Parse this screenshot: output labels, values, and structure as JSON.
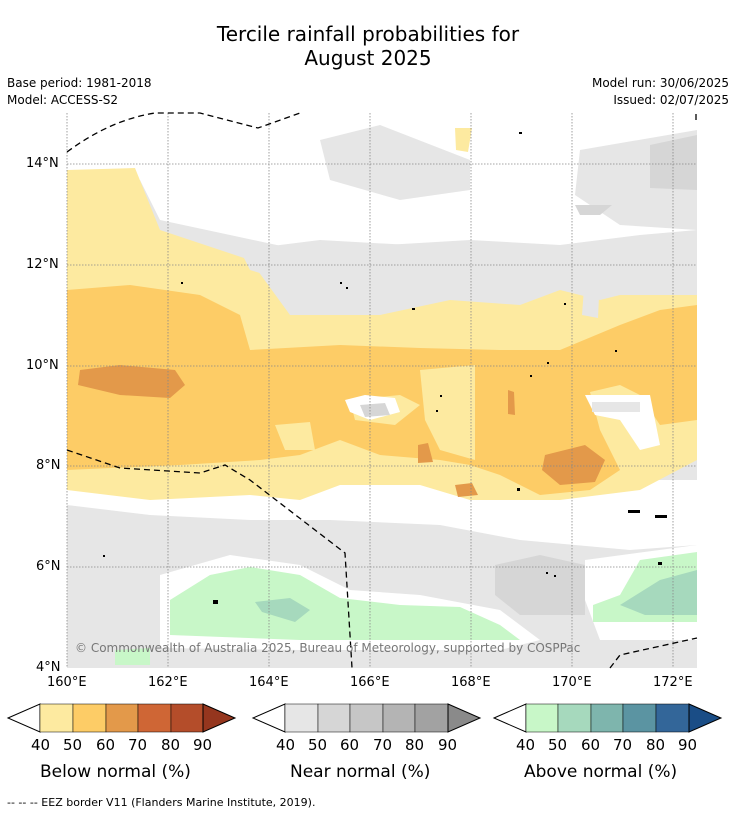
{
  "title_line1": "Tercile rainfall probabilities for",
  "title_line2": "August 2025",
  "base_period": "Base period: 1981-2018",
  "model": "Model: ACCESS-S2",
  "model_run": "Model run: 30/06/2025",
  "issued": "Issued: 02/07/2025",
  "lat_labels": [
    "14°N",
    "12°N",
    "10°N",
    "8°N",
    "6°N",
    "4°N"
  ],
  "lon_labels": [
    "160°E",
    "162°E",
    "164°E",
    "166°E",
    "168°E",
    "170°E",
    "172°E"
  ],
  "copyright": "© Commonwealth of Australia 2025, Bureau of Meteorology, supported by COSPPac",
  "colorbars": [
    {
      "label": "Below normal (%)",
      "ticks": [
        "40",
        "50",
        "60",
        "70",
        "80",
        "90"
      ],
      "colors": [
        "#fdeaa0",
        "#fdcc66",
        "#e3994a",
        "#cf6635",
        "#b44d2a",
        "#95361e"
      ]
    },
    {
      "label": "Near normal (%)",
      "ticks": [
        "40",
        "50",
        "60",
        "70",
        "80",
        "90"
      ],
      "colors": [
        "#e6e6e6",
        "#d6d6d6",
        "#c6c6c6",
        "#b4b4b4",
        "#a2a2a2",
        "#8a8a8a"
      ]
    },
    {
      "label": "Above normal (%)",
      "ticks": [
        "40",
        "50",
        "60",
        "70",
        "80",
        "90"
      ],
      "colors": [
        "#c8f7c8",
        "#a6d9bd",
        "#7eb5ad",
        "#5b94a2",
        "#336699",
        "#1a4d86"
      ]
    }
  ],
  "footnote": "--  --  -- EEZ border V11 (Flanders Marine Institute, 2019)."
}
